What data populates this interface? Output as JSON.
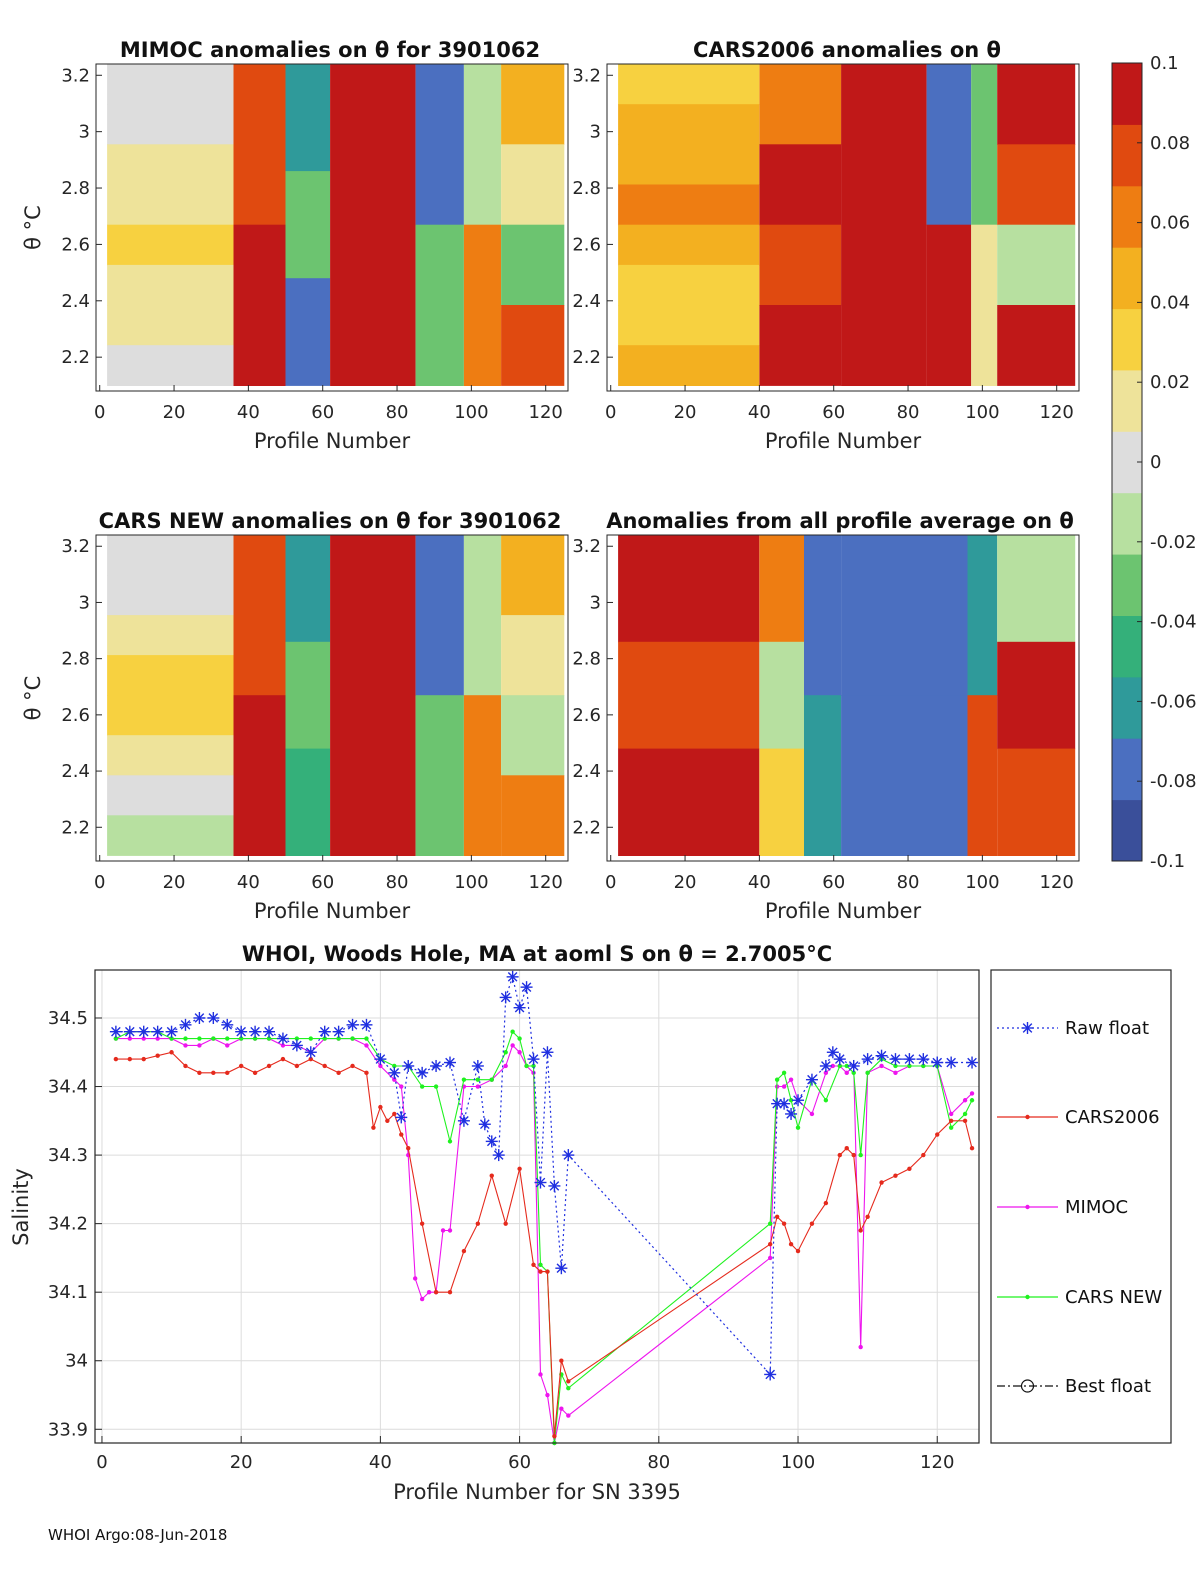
{
  "colorbar": {
    "ticks": [
      "0.1",
      "0.08",
      "0.06",
      "0.04",
      "0.02",
      "0",
      "-0.02",
      "-0.04",
      "-0.06",
      "-0.08",
      "-0.1"
    ],
    "colors": [
      "#3a4f9a",
      "#4b6fc0",
      "#2f9a9a",
      "#34b07a",
      "#6cc470",
      "#b7e0a0",
      "#dddddd",
      "#eee39a",
      "#f7d140",
      "#f3b020",
      "#ee7d12",
      "#e04a10",
      "#c01818"
    ]
  },
  "panels": [
    {
      "id": "mimoc",
      "title": "MIMOC anomalies on θ  for 3901062",
      "xlabel": "Profile Number",
      "ylabel": "θ °C",
      "xticks": [
        "0",
        "20",
        "40",
        "60",
        "80",
        "100",
        "120"
      ],
      "yticks": [
        "3.2",
        "3",
        "2.8",
        "2.6",
        "2.4",
        "2.2"
      ],
      "segments": [
        {
          "x0": 2,
          "x1": 36,
          "ymin": 2.1,
          "v": [
            -0.006,
            0.002,
            0.012,
            0.022,
            0.03,
            0.024,
            0.012,
            -0.004
          ]
        },
        {
          "x0": 36,
          "x1": 50,
          "ymin": 2.1,
          "v": [
            0.09,
            0.1
          ]
        },
        {
          "x0": 50,
          "x1": 62,
          "ymin": 2.1,
          "v": [
            -0.07,
            -0.03,
            -0.08
          ]
        },
        {
          "x0": 62,
          "x1": 85,
          "ymin": 2.1,
          "v": [
            0.1
          ]
        },
        {
          "x0": 85,
          "x1": 98,
          "ymin": 2.1,
          "v": [
            -0.08,
            -0.04
          ]
        },
        {
          "x0": 98,
          "x1": 108,
          "ymin": 2.1,
          "v": [
            -0.02,
            0.06
          ]
        },
        {
          "x0": 108,
          "x1": 125,
          "ymin": 2.1,
          "v": [
            0.05,
            0.02,
            -0.03,
            0.08
          ]
        }
      ]
    },
    {
      "id": "cars2006",
      "title": "CARS2006 anomalies on θ",
      "xlabel": "Profile Number",
      "ylabel": "θ °C",
      "xticks": [
        "0",
        "20",
        "40",
        "60",
        "80",
        "100",
        "120"
      ],
      "yticks": [
        "3.2",
        "3",
        "2.8",
        "2.6",
        "2.4",
        "2.2"
      ],
      "segments": [
        {
          "x0": 2,
          "x1": 40,
          "ymin": 2.1,
          "v": [
            0.03,
            0.045,
            0.055,
            0.06,
            0.05,
            0.035,
            0.04,
            0.05
          ]
        },
        {
          "x0": 40,
          "x1": 62,
          "ymin": 2.1,
          "v": [
            0.07,
            0.1,
            0.08,
            0.1
          ]
        },
        {
          "x0": 62,
          "x1": 85,
          "ymin": 2.1,
          "v": [
            0.1
          ]
        },
        {
          "x0": 85,
          "x1": 97,
          "ymin": 2.1,
          "v": [
            -0.09,
            0.1
          ]
        },
        {
          "x0": 97,
          "x1": 104,
          "ymin": 2.1,
          "v": [
            -0.03,
            0.02
          ]
        },
        {
          "x0": 104,
          "x1": 125,
          "ymin": 2.1,
          "v": [
            0.1,
            0.09,
            -0.02,
            0.1
          ]
        }
      ]
    },
    {
      "id": "carsnew",
      "title": "CARS NEW anomalies on θ for 3901062",
      "xlabel": "Profile Number",
      "ylabel": "θ °C",
      "xticks": [
        "0",
        "20",
        "40",
        "60",
        "80",
        "100",
        "120"
      ],
      "yticks": [
        "3.2",
        "3",
        "2.8",
        "2.6",
        "2.4",
        "2.2"
      ],
      "segments": [
        {
          "x0": 2,
          "x1": 36,
          "ymin": 2.1,
          "v": [
            -0.006,
            0.0,
            0.01,
            0.03,
            0.028,
            0.012,
            -0.004,
            -0.01
          ]
        },
        {
          "x0": 36,
          "x1": 50,
          "ymin": 2.1,
          "v": [
            0.08,
            0.1
          ]
        },
        {
          "x0": 50,
          "x1": 62,
          "ymin": 2.1,
          "v": [
            -0.06,
            -0.03,
            -0.05
          ]
        },
        {
          "x0": 62,
          "x1": 85,
          "ymin": 2.1,
          "v": [
            0.1
          ]
        },
        {
          "x0": 85,
          "x1": 98,
          "ymin": 2.1,
          "v": [
            -0.08,
            -0.03
          ]
        },
        {
          "x0": 98,
          "x1": 108,
          "ymin": 2.1,
          "v": [
            -0.01,
            0.07
          ]
        },
        {
          "x0": 108,
          "x1": 125,
          "ymin": 2.1,
          "v": [
            0.05,
            0.01,
            -0.02,
            0.07
          ]
        }
      ]
    },
    {
      "id": "avg",
      "title": "Anomalies from all profile average on θ",
      "xlabel": "Profile Number",
      "ylabel": "θ °C",
      "xticks": [
        "0",
        "20",
        "40",
        "60",
        "80",
        "100",
        "120"
      ],
      "yticks": [
        "3.2",
        "3",
        "2.8",
        "2.6",
        "2.4",
        "2.2"
      ],
      "segments": [
        {
          "x0": 2,
          "x1": 40,
          "ymin": 2.1,
          "v": [
            0.1,
            0.09,
            0.1
          ]
        },
        {
          "x0": 40,
          "x1": 52,
          "ymin": 2.1,
          "v": [
            0.06,
            -0.01,
            0.04
          ]
        },
        {
          "x0": 52,
          "x1": 62,
          "ymin": 2.1,
          "v": [
            -0.09,
            -0.07
          ]
        },
        {
          "x0": 62,
          "x1": 96,
          "ymin": 2.1,
          "v": [
            -0.09,
            -0.08
          ]
        },
        {
          "x0": 96,
          "x1": 104,
          "ymin": 2.1,
          "v": [
            -0.06,
            0.08
          ]
        },
        {
          "x0": 104,
          "x1": 125,
          "ymin": 2.1,
          "v": [
            -0.01,
            0.1,
            0.09
          ]
        }
      ]
    }
  ],
  "chart_data": {
    "type": "line",
    "title": "WHOI, Woods Hole, MA at aoml S on θ = 2.7005°C",
    "xlabel": "Profile Number for SN 3395",
    "ylabel": "Salinity",
    "xlim": [
      -1,
      126
    ],
    "ylim": [
      33.88,
      34.57
    ],
    "xticks": [
      "0",
      "20",
      "40",
      "60",
      "80",
      "100",
      "120"
    ],
    "yticks": [
      "34.5",
      "34.4",
      "34.3",
      "34.2",
      "34.1",
      "34",
      "33.9"
    ],
    "series": [
      {
        "name": "Raw float",
        "color": "#1f2fe0",
        "dash": "2 3",
        "marker": "asterisk",
        "x": [
          2,
          4,
          6,
          8,
          10,
          12,
          14,
          16,
          18,
          20,
          22,
          24,
          26,
          28,
          30,
          32,
          34,
          36,
          38,
          40,
          42,
          43,
          44,
          46,
          48,
          50,
          52,
          54,
          55,
          56,
          57,
          58,
          59,
          60,
          61,
          62,
          63,
          64,
          65,
          66,
          67,
          96,
          97,
          98,
          99,
          100,
          102,
          104,
          105,
          106,
          108,
          110,
          112,
          114,
          116,
          118,
          120,
          122,
          125
        ],
        "y": [
          34.48,
          34.48,
          34.48,
          34.48,
          34.48,
          34.49,
          34.5,
          34.5,
          34.49,
          34.48,
          34.48,
          34.48,
          34.47,
          34.46,
          34.45,
          34.48,
          34.48,
          34.49,
          34.49,
          34.44,
          34.42,
          34.355,
          34.43,
          34.42,
          34.43,
          34.435,
          34.35,
          34.43,
          34.345,
          34.32,
          34.3,
          34.53,
          34.56,
          34.515,
          34.545,
          34.44,
          34.26,
          34.45,
          34.255,
          34.135,
          34.3,
          33.98,
          34.375,
          34.375,
          34.36,
          34.38,
          34.41,
          34.43,
          34.45,
          34.44,
          34.43,
          34.44,
          34.445,
          34.44,
          34.44,
          34.44,
          34.435,
          34.435,
          34.435
        ]
      },
      {
        "name": "CARS2006",
        "color": "#e52a1d",
        "dash": "",
        "marker": "dot",
        "x": [
          2,
          4,
          6,
          8,
          10,
          12,
          14,
          16,
          18,
          20,
          22,
          24,
          26,
          28,
          30,
          32,
          34,
          36,
          38,
          39,
          40,
          41,
          42,
          43,
          44,
          46,
          48,
          50,
          52,
          54,
          56,
          58,
          60,
          62,
          63,
          64,
          65,
          66,
          67,
          96,
          97,
          98,
          99,
          100,
          102,
          104,
          106,
          107,
          108,
          109,
          110,
          112,
          114,
          116,
          118,
          120,
          122,
          124,
          125
        ],
        "y": [
          34.44,
          34.44,
          34.44,
          34.445,
          34.45,
          34.43,
          34.42,
          34.42,
          34.42,
          34.43,
          34.42,
          34.43,
          34.44,
          34.43,
          34.44,
          34.43,
          34.42,
          34.43,
          34.42,
          34.34,
          34.37,
          34.35,
          34.36,
          34.33,
          34.31,
          34.2,
          34.1,
          34.1,
          34.16,
          34.2,
          34.27,
          34.2,
          34.28,
          34.14,
          34.13,
          34.13,
          33.89,
          34.0,
          33.97,
          34.17,
          34.21,
          34.2,
          34.17,
          34.16,
          34.2,
          34.23,
          34.3,
          34.31,
          34.3,
          34.19,
          34.21,
          34.26,
          34.27,
          34.28,
          34.3,
          34.33,
          34.35,
          34.35,
          34.31
        ]
      },
      {
        "name": "MIMOC",
        "color": "#ee15ee",
        "dash": "",
        "marker": "dot",
        "x": [
          2,
          4,
          6,
          8,
          10,
          12,
          14,
          16,
          18,
          20,
          22,
          24,
          26,
          28,
          30,
          32,
          34,
          36,
          38,
          40,
          42,
          43,
          44,
          45,
          46,
          47,
          48,
          49,
          50,
          52,
          54,
          56,
          58,
          59,
          60,
          61,
          62,
          63,
          64,
          65,
          66,
          67,
          96,
          97,
          98,
          99,
          100,
          102,
          104,
          105,
          106,
          107,
          108,
          109,
          110,
          112,
          114,
          116,
          118,
          120,
          122,
          124,
          125
        ],
        "y": [
          34.47,
          34.47,
          34.47,
          34.47,
          34.47,
          34.46,
          34.46,
          34.47,
          34.46,
          34.47,
          34.47,
          34.47,
          34.46,
          34.46,
          34.45,
          34.47,
          34.47,
          34.47,
          34.46,
          34.43,
          34.41,
          34.4,
          34.3,
          34.12,
          34.09,
          34.1,
          34.1,
          34.19,
          34.19,
          34.4,
          34.4,
          34.41,
          34.43,
          34.46,
          34.45,
          34.43,
          34.42,
          33.98,
          33.95,
          33.88,
          33.93,
          33.92,
          34.15,
          34.4,
          34.4,
          34.41,
          34.38,
          34.36,
          34.42,
          34.43,
          34.43,
          34.42,
          34.43,
          34.02,
          34.42,
          34.43,
          34.42,
          34.43,
          34.43,
          34.43,
          34.36,
          34.38,
          34.39
        ]
      },
      {
        "name": "CARS NEW",
        "color": "#1ff21f",
        "dash": "",
        "marker": "dot",
        "x": [
          2,
          4,
          6,
          8,
          10,
          12,
          14,
          16,
          18,
          20,
          22,
          24,
          26,
          28,
          30,
          32,
          34,
          36,
          38,
          40,
          42,
          44,
          46,
          48,
          50,
          52,
          54,
          56,
          58,
          59,
          60,
          61,
          62,
          63,
          64,
          65,
          66,
          67,
          96,
          97,
          98,
          99,
          100,
          102,
          104,
          106,
          107,
          108,
          109,
          110,
          112,
          114,
          116,
          118,
          120,
          122,
          124,
          125
        ],
        "y": [
          34.47,
          34.48,
          34.48,
          34.48,
          34.47,
          34.47,
          34.47,
          34.47,
          34.47,
          34.47,
          34.47,
          34.47,
          34.47,
          34.47,
          34.47,
          34.47,
          34.47,
          34.47,
          34.47,
          34.44,
          34.43,
          34.43,
          34.4,
          34.4,
          34.32,
          34.41,
          34.41,
          34.41,
          34.45,
          34.48,
          34.47,
          34.43,
          34.43,
          34.14,
          34.13,
          33.88,
          33.98,
          33.96,
          34.2,
          34.41,
          34.42,
          34.38,
          34.34,
          34.41,
          34.38,
          34.43,
          34.43,
          34.42,
          34.3,
          34.42,
          34.44,
          34.43,
          34.43,
          34.43,
          34.43,
          34.34,
          34.36,
          34.38
        ]
      },
      {
        "name": "Best float",
        "color": "#111111",
        "dash": "8 3 2 3",
        "marker": "circle",
        "x": [],
        "y": []
      }
    ],
    "legend": [
      "Raw float",
      "CARS2006",
      "MIMOC",
      "CARS NEW",
      "Best float"
    ]
  },
  "footer": "WHOI Argo:08-Jun-2018"
}
